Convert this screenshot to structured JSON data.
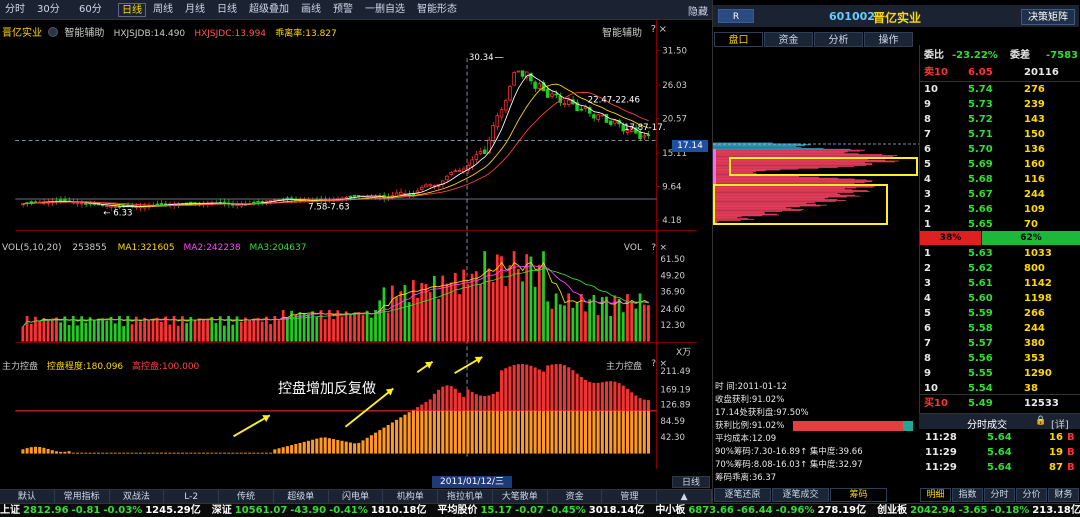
{
  "toolbar": {
    "periods": [
      "分时",
      "30分",
      "60分",
      "日线",
      "周线",
      "月线",
      "日线"
    ],
    "active_period": "日线",
    "buttons": [
      "超级叠加",
      "画线",
      "预警",
      "一删自选",
      "智能形态"
    ],
    "hide_label": "隐藏"
  },
  "main_chart": {
    "stock_name": "晋亿实业",
    "indicator": "智能辅助",
    "line1": "HXJSJDB:14.490",
    "line2": "HXJSJDC:13.994",
    "line3": "乖离率:13.827",
    "right_label": "智能辅助",
    "yticks": [
      "31.50",
      "26.03",
      "20.57",
      "15.11",
      "9.64",
      "4.18"
    ],
    "annotations": [
      "30.34",
      "22.47-22.46",
      "17.87-17.",
      "7.58-7.63",
      "6.33"
    ],
    "current_price": "17.14"
  },
  "vol_chart": {
    "label": "VOL(5,10,20)",
    "value": "253855",
    "ma1": "MA1:321605",
    "ma2": "MA2:242238",
    "ma3": "MA3:204637",
    "right_label": "VOL",
    "yticks": [
      "61.50",
      "49.20",
      "36.90",
      "24.60",
      "12.30"
    ],
    "unit": "X万"
  },
  "ctrl_chart": {
    "label": "主力控盘",
    "degree": "控盘程度:180.096",
    "high": "高控盘:100.000",
    "right_label": "主力控盘",
    "yticks": [
      "211.49",
      "169.19",
      "126.89",
      "84.59",
      "42.30"
    ],
    "caption": "控盘增加反复做",
    "date_cursor": "2011/01/12/三",
    "period_label": "日线"
  },
  "bottom_tabs": [
    "默认",
    "常用指标",
    "双战法",
    "L-2",
    "传统",
    "超级单",
    "闪电单",
    "机构单",
    "拖拉机单",
    "大笔散单",
    "资金",
    "管理",
    "▲"
  ],
  "right_panel": {
    "code": "601002",
    "name": "晋亿实业",
    "btn_r": "R",
    "decide_btn": "决策矩阵",
    "tabs": [
      "盘口",
      "资金",
      "分析",
      "操作"
    ],
    "wb_label": "委比",
    "wb_value": "-23.22%",
    "wc_label": "委差",
    "wc_value": "-7583",
    "sell10_label": "卖10",
    "sell10_price": "6.05",
    "sell10_vol": "20116",
    "asks": [
      {
        "n": "10",
        "p": "5.74",
        "v": "276"
      },
      {
        "n": "9",
        "p": "5.73",
        "v": "239"
      },
      {
        "n": "8",
        "p": "5.72",
        "v": "143"
      },
      {
        "n": "7",
        "p": "5.71",
        "v": "150"
      },
      {
        "n": "6",
        "p": "5.70",
        "v": "136"
      },
      {
        "n": "5",
        "p": "5.69",
        "v": "160"
      },
      {
        "n": "4",
        "p": "5.68",
        "v": "116"
      },
      {
        "n": "3",
        "p": "5.67",
        "v": "244"
      },
      {
        "n": "2",
        "p": "5.66",
        "v": "109"
      },
      {
        "n": "1",
        "p": "5.65",
        "v": "70"
      }
    ],
    "bar_red": "38%",
    "bar_green": "62%",
    "bids": [
      {
        "n": "1",
        "p": "5.63",
        "v": "1033"
      },
      {
        "n": "2",
        "p": "5.62",
        "v": "800"
      },
      {
        "n": "3",
        "p": "5.61",
        "v": "1142"
      },
      {
        "n": "4",
        "p": "5.60",
        "v": "1198"
      },
      {
        "n": "5",
        "p": "5.59",
        "v": "266"
      },
      {
        "n": "6",
        "p": "5.58",
        "v": "244"
      },
      {
        "n": "7",
        "p": "5.57",
        "v": "380"
      },
      {
        "n": "8",
        "p": "5.56",
        "v": "353"
      },
      {
        "n": "9",
        "p": "5.55",
        "v": "1290"
      },
      {
        "n": "10",
        "p": "5.54",
        "v": "38"
      }
    ],
    "buy10_label": "买10",
    "buy10_price": "5.49",
    "buy10_vol": "12533",
    "trades_title": "分时成交",
    "trades_detail": "[详]",
    "trades": [
      {
        "t": "11:28",
        "p": "5.64",
        "v": "16",
        "d": "B"
      },
      {
        "t": "11:29",
        "p": "5.64",
        "v": "19",
        "d": "B"
      },
      {
        "t": "11:29",
        "p": "5.64",
        "v": "87",
        "d": "B"
      }
    ],
    "bottom_tabs": [
      "明细",
      "指数",
      "分时",
      "分价",
      "财务"
    ],
    "chip_tabs": [
      "逐笔还原",
      "逐笔成交",
      "筹码"
    ],
    "chip_info": [
      "时      间:2011-01-12",
      "收盘获利:91.02%",
      "17.14处获利盘:97.50%",
      "获利比例:91.02%",
      "平均成本:12.09",
      "90%筹码:7.30-16.89↑  集中度:39.66",
      "70%筹码:8.08-16.03↑  集中度:32.97",
      "筹码乖离:36.37"
    ]
  },
  "status_bar": [
    {
      "name": "上证",
      "v1": "2812.96",
      "v2": "-0.81",
      "v3": "-0.03%",
      "v4": "1245.29亿"
    },
    {
      "name": "深证",
      "v1": "10561.07",
      "v2": "-43.90",
      "v3": "-0.41%",
      "v4": "1810.18亿"
    },
    {
      "name": "平均股价",
      "v1": "15.17",
      "v2": "-0.07",
      "v3": "-0.45%",
      "v4": "3018.14亿"
    },
    {
      "name": "中小板",
      "v1": "6873.66",
      "v2": "-66.44",
      "v3": "-0.96%",
      "v4": "278.19亿"
    },
    {
      "name": "创业板",
      "v1": "2042.94",
      "v2": "-3.65",
      "v3": "-0.18%",
      "v4": "213.18亿"
    }
  ],
  "colors": {
    "up": "#ff3333",
    "down": "#33dd33",
    "accent": "#ffd800",
    "grid": "#8b0000"
  }
}
